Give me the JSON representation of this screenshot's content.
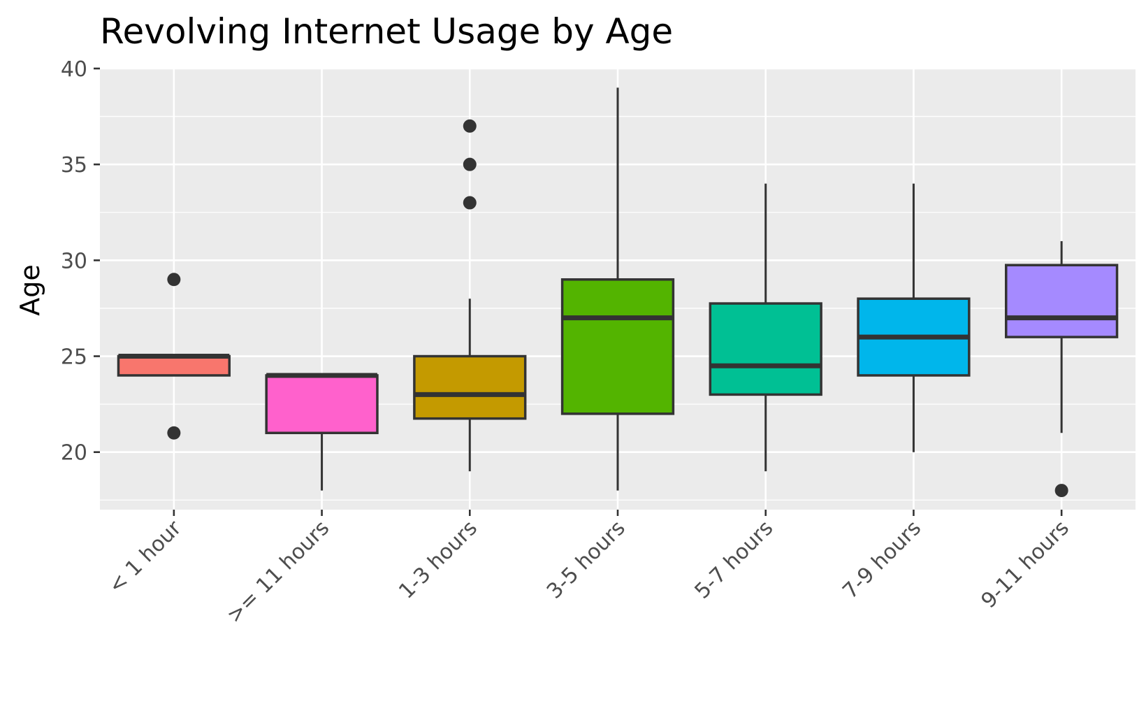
{
  "chart_data": {
    "type": "box",
    "title": "Revolving Internet Usage by Age",
    "xlabel": "",
    "ylabel": "Age",
    "ylim": [
      17,
      40
    ],
    "yticks": [
      20,
      25,
      30,
      35,
      40
    ],
    "grid": true,
    "legend": "none",
    "categories": [
      "< 1 hour",
      ">= 11 hours",
      "1-3 hours",
      "3-5 hours",
      "5-7 hours",
      "7-9 hours",
      "9-11 hours"
    ],
    "boxes": [
      {
        "category": "< 1 hour",
        "color": "#F8766D",
        "whisker_low": 24,
        "q1": 24,
        "median": 25,
        "q3": 25,
        "whisker_high": 25,
        "outliers": [
          21,
          29
        ]
      },
      {
        "category": ">= 11 hours",
        "color": "#FF61CC",
        "whisker_low": 18,
        "q1": 21,
        "median": 24,
        "q3": 24,
        "whisker_high": 24,
        "outliers": []
      },
      {
        "category": "1-3 hours",
        "color": "#C49A00",
        "whisker_low": 19,
        "q1": 21.75,
        "median": 23,
        "q3": 25,
        "whisker_high": 28,
        "outliers": [
          33,
          35,
          37
        ]
      },
      {
        "category": "3-5 hours",
        "color": "#53B400",
        "whisker_low": 18,
        "q1": 22,
        "median": 27,
        "q3": 29,
        "whisker_high": 39,
        "outliers": []
      },
      {
        "category": "5-7 hours",
        "color": "#00C094",
        "whisker_low": 19,
        "q1": 23,
        "median": 24.5,
        "q3": 27.75,
        "whisker_high": 34,
        "outliers": []
      },
      {
        "category": "7-9 hours",
        "color": "#00B6EB",
        "whisker_low": 20,
        "q1": 24,
        "median": 26,
        "q3": 28,
        "whisker_high": 34,
        "outliers": []
      },
      {
        "category": "9-11 hours",
        "color": "#A58AFF",
        "whisker_low": 21,
        "q1": 26,
        "median": 27,
        "q3": 29.75,
        "whisker_high": 31,
        "outliers": [
          18
        ]
      }
    ],
    "colors": {
      "panel_background": "#EBEBEB",
      "grid_major": "#FFFFFF",
      "box_outline": "#333333",
      "tick_text": "#4D4D4D"
    }
  }
}
